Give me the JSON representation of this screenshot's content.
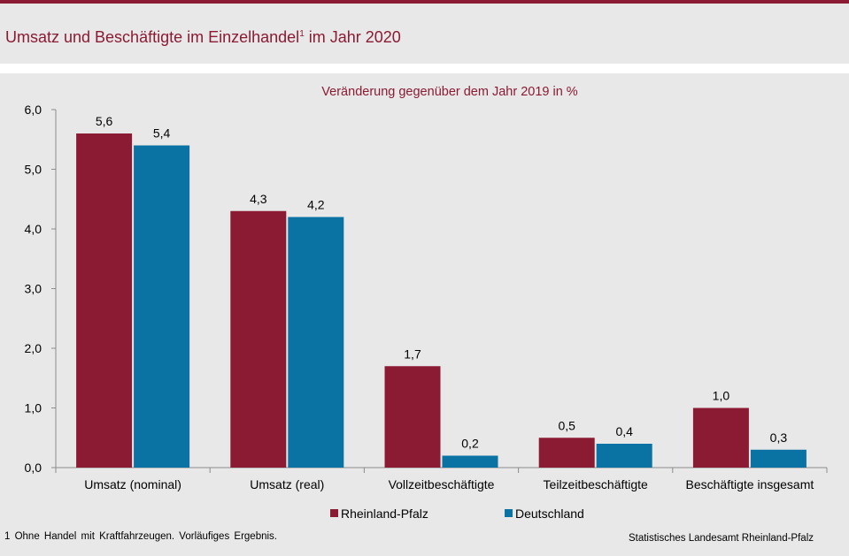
{
  "header": {
    "title": "Umsatz und Beschäftigte im Einzelhandel",
    "title_sup": "1",
    "title_tail": " im Jahr 2020"
  },
  "chart_data": {
    "type": "bar",
    "subtitle": "Veränderung  gegenüber  dem Jahr 2019 in %",
    "categories": [
      "Umsatz (nominal)",
      "Umsatz (real)",
      "Vollzeitbeschäftigte",
      "Teilzeitbeschäftigte",
      "Beschäftigte insgesamt"
    ],
    "series": [
      {
        "name": "Rheinland-Pfalz",
        "values": [
          5.6,
          4.3,
          1.7,
          0.5,
          1.0
        ],
        "labels": [
          "5,6",
          "4,3",
          "1,7",
          "0,5",
          "1,0"
        ],
        "color": "#8b1a33"
      },
      {
        "name": "Deutschland",
        "values": [
          5.4,
          4.2,
          0.2,
          0.4,
          0.3
        ],
        "labels": [
          "5,4",
          "4,2",
          "0,2",
          "0,4",
          "0,3"
        ],
        "color": "#0a73a3"
      }
    ],
    "ylim": [
      0,
      6
    ],
    "yticks": [
      0,
      1,
      2,
      3,
      4,
      5,
      6
    ],
    "ytick_labels": [
      "0,0",
      "1,0",
      "2,0",
      "3,0",
      "4,0",
      "5,0",
      "6,0"
    ],
    "grid": false,
    "legend_position": "bottom"
  },
  "footnote": "1 Ohne Handel  mit Kraftfahrzeugen.  Vorläufiges  Ergebnis.",
  "source": "Statistisches Landesamt  Rheinland-Pfalz"
}
